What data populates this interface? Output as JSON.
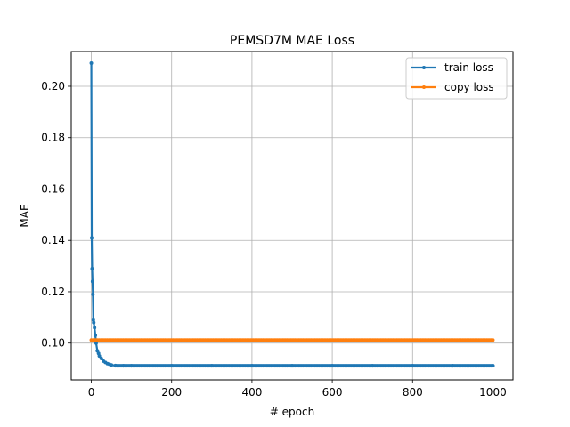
{
  "chart_data": {
    "type": "line",
    "title": "PEMSD7M MAE Loss",
    "xlabel": "# epoch",
    "ylabel": "MAE",
    "xlim": [
      -50,
      1050
    ],
    "ylim": [
      0.0857,
      0.2135
    ],
    "x_ticks": [
      0,
      200,
      400,
      600,
      800,
      1000
    ],
    "y_ticks": [
      0.1,
      0.12,
      0.14,
      0.16,
      0.18,
      0.2
    ],
    "x_tick_labels": [
      "0",
      "200",
      "400",
      "600",
      "800",
      "1000"
    ],
    "y_tick_labels": [
      "0.10",
      "0.12",
      "0.14",
      "0.16",
      "0.18",
      "0.20"
    ],
    "grid": true,
    "legend_position": "top-right",
    "series": [
      {
        "name": "train loss",
        "color": "#1f77b4",
        "marker": "dot",
        "points": [
          [
            0,
            0.209
          ],
          [
            1,
            0.141
          ],
          [
            2,
            0.129
          ],
          [
            3,
            0.124
          ],
          [
            4,
            0.119
          ],
          [
            5,
            0.109
          ],
          [
            6,
            0.108
          ],
          [
            8,
            0.106
          ],
          [
            10,
            0.103
          ],
          [
            12,
            0.1
          ],
          [
            15,
            0.097
          ],
          [
            18,
            0.096
          ],
          [
            20,
            0.095
          ],
          [
            25,
            0.094
          ],
          [
            30,
            0.093
          ],
          [
            35,
            0.0925
          ],
          [
            40,
            0.092
          ],
          [
            45,
            0.0918
          ],
          [
            50,
            0.0915
          ],
          [
            60,
            0.0913
          ],
          [
            80,
            0.0912
          ],
          [
            100,
            0.0912
          ],
          [
            200,
            0.0912
          ],
          [
            300,
            0.0912
          ],
          [
            400,
            0.0912
          ],
          [
            500,
            0.0912
          ],
          [
            600,
            0.0912
          ],
          [
            700,
            0.0912
          ],
          [
            800,
            0.0912
          ],
          [
            900,
            0.0912
          ],
          [
            1000,
            0.0912
          ]
        ]
      },
      {
        "name": "copy loss",
        "color": "#ff7f0e",
        "marker": "dot",
        "points": [
          [
            0,
            0.1012
          ],
          [
            1000,
            0.1012
          ]
        ]
      }
    ]
  }
}
